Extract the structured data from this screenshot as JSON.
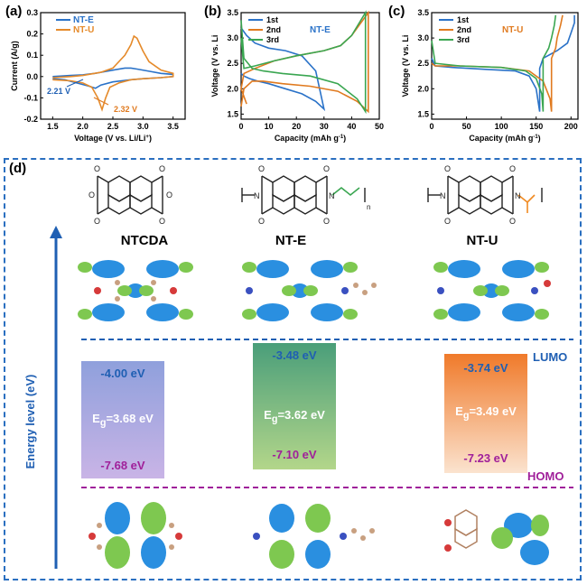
{
  "panels": {
    "a_label": "(a)",
    "b_label": "(b)",
    "c_label": "(c)",
    "d_label": "(d)"
  },
  "chart_data": [
    {
      "type": "line",
      "panel": "(a)",
      "xlabel": "Voltage (V vs. Li/Li",
      "xlabel_sup": "+",
      "xlabel_end": ")",
      "ylabel": "Current (A/g)",
      "xlim": [
        1.3,
        3.7
      ],
      "ylim": [
        -0.2,
        0.3
      ],
      "xticks": [
        "1.5",
        "2.0",
        "2.5",
        "3.0",
        "3.5"
      ],
      "yticks": [
        "-0.2",
        "-0.1",
        "0.0",
        "0.1",
        "0.2",
        "0.3"
      ],
      "legend": [
        "NT-E",
        "NT-U"
      ],
      "annotations": [
        {
          "text": "2.21 V",
          "color": "#1f5fb3"
        },
        {
          "text": "2.32 V",
          "color": "#e07a1f"
        }
      ],
      "series": [
        {
          "name": "NT-E",
          "color": "#2a72c8",
          "x": [
            1.5,
            1.8,
            2.0,
            2.1,
            2.2,
            2.3,
            2.5,
            2.7,
            2.8,
            2.9,
            3.1,
            3.3,
            3.5,
            3.5,
            3.3,
            3.0,
            2.8,
            2.5,
            2.3,
            2.21,
            2.1,
            1.9,
            1.7,
            1.5
          ],
          "y": [
            0.0,
            0.005,
            0.008,
            0.012,
            0.015,
            0.02,
            0.03,
            0.04,
            0.04,
            0.035,
            0.025,
            0.015,
            0.01,
            0.0,
            -0.005,
            -0.01,
            -0.015,
            -0.025,
            -0.04,
            -0.055,
            -0.045,
            -0.03,
            -0.015,
            -0.01
          ]
        },
        {
          "name": "NT-U",
          "color": "#e58a2a",
          "x": [
            1.5,
            1.8,
            2.0,
            2.3,
            2.5,
            2.7,
            2.8,
            2.85,
            2.9,
            3.0,
            3.1,
            3.3,
            3.5,
            3.5,
            3.3,
            3.0,
            2.8,
            2.6,
            2.45,
            2.38,
            2.32,
            2.25,
            2.15,
            2.0,
            1.8,
            1.5
          ],
          "y": [
            -0.005,
            0.0,
            0.005,
            0.02,
            0.04,
            0.1,
            0.15,
            0.19,
            0.18,
            0.12,
            0.07,
            0.03,
            0.015,
            0.0,
            -0.005,
            -0.01,
            -0.015,
            -0.03,
            -0.05,
            -0.1,
            -0.155,
            -0.1,
            -0.05,
            -0.03,
            -0.02,
            -0.015
          ]
        }
      ]
    },
    {
      "type": "line",
      "panel": "(b)",
      "title": "NT-E",
      "xlabel": "Capacity (mAh g",
      "xlabel_sup": "-1",
      "xlabel_end": ")",
      "ylabel": "Voltage (V vs. Li",
      "xlim": [
        0,
        50
      ],
      "ylim": [
        1.4,
        3.5
      ],
      "xticks": [
        "0",
        "10",
        "20",
        "30",
        "40",
        "50"
      ],
      "yticks": [
        "1.5",
        "2.0",
        "2.5",
        "3.0",
        "3.5"
      ],
      "legend": [
        "1st",
        "2nd",
        "3rd"
      ],
      "series": [
        {
          "name": "1st",
          "color": "#2a72c8",
          "x": [
            0,
            1,
            3,
            6,
            10,
            16,
            22,
            27,
            30,
            30,
            27,
            22,
            16,
            10,
            5,
            2,
            0
          ],
          "y": [
            2.3,
            2.25,
            2.2,
            2.15,
            2.1,
            2.0,
            1.9,
            1.75,
            1.6,
            1.6,
            2.35,
            2.65,
            2.75,
            2.8,
            2.9,
            3.05,
            3.2
          ]
        },
        {
          "name": "2nd",
          "color": "#e07a1f",
          "x": [
            0,
            1,
            4,
            8,
            15,
            25,
            35,
            42,
            46,
            46,
            40,
            36,
            30,
            20,
            12,
            5,
            1,
            0,
            2
          ],
          "y": [
            1.65,
            2.0,
            2.15,
            2.15,
            2.1,
            2.05,
            1.95,
            1.75,
            1.55,
            3.5,
            3.05,
            2.85,
            2.75,
            2.65,
            2.55,
            2.4,
            2.3,
            2.0,
            1.7
          ]
        },
        {
          "name": "3rd",
          "color": "#3aa651",
          "x": [
            0,
            1,
            4,
            8,
            15,
            25,
            35,
            42,
            45,
            45,
            40,
            36,
            30,
            20,
            12,
            5,
            1,
            0
          ],
          "y": [
            3.35,
            2.6,
            2.4,
            2.35,
            2.3,
            2.25,
            2.1,
            1.8,
            1.55,
            3.5,
            3.05,
            2.85,
            2.75,
            2.65,
            2.55,
            2.45,
            2.4,
            3.0
          ]
        }
      ]
    },
    {
      "type": "line",
      "panel": "(c)",
      "title": "NT-U",
      "xlabel": "Capacity (mAh g",
      "xlabel_sup": "-1",
      "xlabel_end": ")",
      "ylabel": "Voltage (V vs. Li",
      "xlim": [
        0,
        210
      ],
      "ylim": [
        1.4,
        3.5
      ],
      "xticks": [
        "0",
        "50",
        "100",
        "150",
        "200"
      ],
      "yticks": [
        "1.5",
        "2.0",
        "2.5",
        "3.0",
        "3.5"
      ],
      "legend": [
        "1st",
        "2nd",
        "3rd"
      ],
      "series": [
        {
          "name": "1st",
          "color": "#2a72c8",
          "x": [
            0,
            5,
            30,
            80,
            120,
            140,
            150,
            155,
            155,
            160,
            180,
            195,
            200,
            205,
            205
          ],
          "y": [
            2.6,
            2.45,
            2.42,
            2.38,
            2.35,
            2.25,
            2.0,
            1.55,
            2.4,
            2.6,
            2.75,
            2.9,
            3.1,
            3.3,
            3.45
          ]
        },
        {
          "name": "2nd",
          "color": "#e07a1f",
          "x": [
            0,
            5,
            40,
            100,
            140,
            160,
            170,
            172,
            172,
            178,
            180,
            185,
            188
          ],
          "y": [
            2.5,
            2.45,
            2.45,
            2.42,
            2.35,
            2.15,
            1.8,
            1.55,
            2.6,
            2.8,
            3.0,
            3.25,
            3.45
          ]
        },
        {
          "name": "3rd",
          "color": "#3aa651",
          "x": [
            0,
            5,
            40,
            100,
            135,
            150,
            158,
            160,
            160,
            168,
            172,
            176,
            178
          ],
          "y": [
            2.95,
            2.5,
            2.45,
            2.42,
            2.35,
            2.2,
            1.9,
            1.55,
            2.6,
            2.8,
            3.0,
            3.25,
            3.45
          ]
        }
      ]
    }
  ],
  "panel_d": {
    "axis_label": "Energy level (eV)",
    "lumo_label": "LUMO",
    "homo_label": "HOMO",
    "n_sub": "n",
    "molecules": [
      {
        "name": "NTCDA",
        "color": "#7a3fa0",
        "lumo": "-4.00 eV",
        "gap_prefix": "E",
        "gap_sub": "g",
        "gap_value": "=3.68 eV",
        "homo": "-7.68 eV",
        "box_top": "#8fa0dc",
        "box_bottom": "#c9b4e6"
      },
      {
        "name": "NT-E",
        "color": "#2e8f3a",
        "lumo": "-3.48 eV",
        "gap_prefix": "E",
        "gap_sub": "g",
        "gap_value": "=3.62 eV",
        "homo": "-7.10 eV",
        "box_top": "#4a9e7a",
        "box_bottom": "#b3d68a"
      },
      {
        "name": "NT-U",
        "color": "#f08a22",
        "lumo": "-3.74 eV",
        "gap_prefix": "E",
        "gap_sub": "g",
        "gap_value": "=3.49 eV",
        "homo": "-7.23 eV",
        "box_top": "#f07a2a",
        "box_bottom": "#fbe3cf"
      }
    ]
  }
}
